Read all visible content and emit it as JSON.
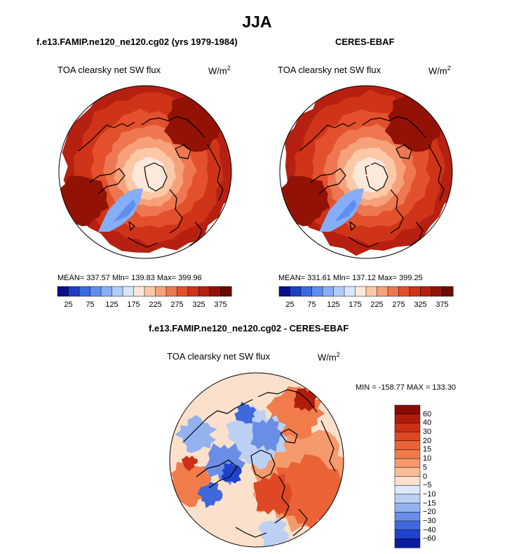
{
  "season_title": "JJA",
  "panels": [
    {
      "title": "f.e13.FAMIP.ne120_ne120.cg02 (yrs 1979-1984)",
      "variable": "TOA clearsky net SW flux",
      "units": "W/m",
      "units_exp": "2",
      "stats": "MEAN= 337.57  Mln= 139.83  Max= 399.96",
      "colorbar_ticks": [
        "25",
        "75",
        "125",
        "175",
        "225",
        "275",
        "325",
        "375"
      ]
    },
    {
      "title": "CERES-EBAF",
      "variable": "TOA clearsky net SW flux",
      "units": "W/m",
      "units_exp": "2",
      "stats": "MEAN= 331.61  Mln= 137.12  Max= 399.25",
      "colorbar_ticks": [
        "25",
        "75",
        "125",
        "175",
        "225",
        "275",
        "325",
        "375"
      ]
    },
    {
      "title": "f.e13.FAMIP.ne120_ne120.cg02 - CERES-EBAF",
      "variable": "TOA clearsky net SW flux",
      "units": "W/m",
      "units_exp": "2",
      "stats": "MIN = -158.77 MAX = 133.30",
      "colorbar_ticks": [
        "60",
        "40",
        "30",
        "20",
        "15",
        "10",
        "5",
        "0",
        "−5",
        "−10",
        "−15",
        "−20",
        "−30",
        "−40",
        "−60"
      ]
    }
  ],
  "chart_data": [
    {
      "type": "heatmap",
      "projection": "north polar stereographic",
      "title": "f.e13.FAMIP.ne120_ne120.cg02 (yrs 1979-1984)",
      "variable": "TOA clearsky net SW flux",
      "units": "W/m^2",
      "mean": 337.57,
      "min": 139.83,
      "max": 399.96,
      "contour_levels": [
        25,
        50,
        75,
        100,
        125,
        150,
        175,
        200,
        225,
        250,
        275,
        300,
        325,
        350,
        375
      ],
      "colors": [
        "#0a0f8c",
        "#1c3fc4",
        "#3a6ae0",
        "#5e8ff0",
        "#86aef6",
        "#b0ccfa",
        "#d8e6fc",
        "#fde9dc",
        "#fbc8a8",
        "#f6a17a",
        "#ee7650",
        "#e2502c",
        "#cf3318",
        "#b52010",
        "#921206",
        "#6e0802"
      ]
    },
    {
      "type": "heatmap",
      "projection": "north polar stereographic",
      "title": "CERES-EBAF",
      "variable": "TOA clearsky net SW flux",
      "units": "W/m^2",
      "mean": 331.61,
      "min": 137.12,
      "max": 399.25,
      "contour_levels": [
        25,
        50,
        75,
        100,
        125,
        150,
        175,
        200,
        225,
        250,
        275,
        300,
        325,
        350,
        375
      ],
      "colors": [
        "#0a0f8c",
        "#1c3fc4",
        "#3a6ae0",
        "#5e8ff0",
        "#86aef6",
        "#b0ccfa",
        "#d8e6fc",
        "#fde9dc",
        "#fbc8a8",
        "#f6a17a",
        "#ee7650",
        "#e2502c",
        "#cf3318",
        "#b52010",
        "#921206",
        "#6e0802"
      ]
    },
    {
      "type": "heatmap",
      "projection": "north polar stereographic",
      "title": "f.e13.FAMIP.ne120_ne120.cg02 - CERES-EBAF",
      "variable": "TOA clearsky net SW flux",
      "units": "W/m^2",
      "min": -158.77,
      "max": 133.3,
      "contour_levels": [
        60,
        40,
        30,
        20,
        15,
        10,
        5,
        0,
        -5,
        -10,
        -15,
        -20,
        -30,
        -40,
        -60
      ],
      "colors": [
        "#8c0a04",
        "#b01c0c",
        "#cc3018",
        "#de4824",
        "#ea6236",
        "#f07c4c",
        "#f59a6c",
        "#f9bc98",
        "#fbe0cc",
        "#dde8f8",
        "#bcd0f4",
        "#94b2ee",
        "#6a8ee6",
        "#3f68dc",
        "#1e44cc",
        "#0a1c9c"
      ]
    }
  ]
}
